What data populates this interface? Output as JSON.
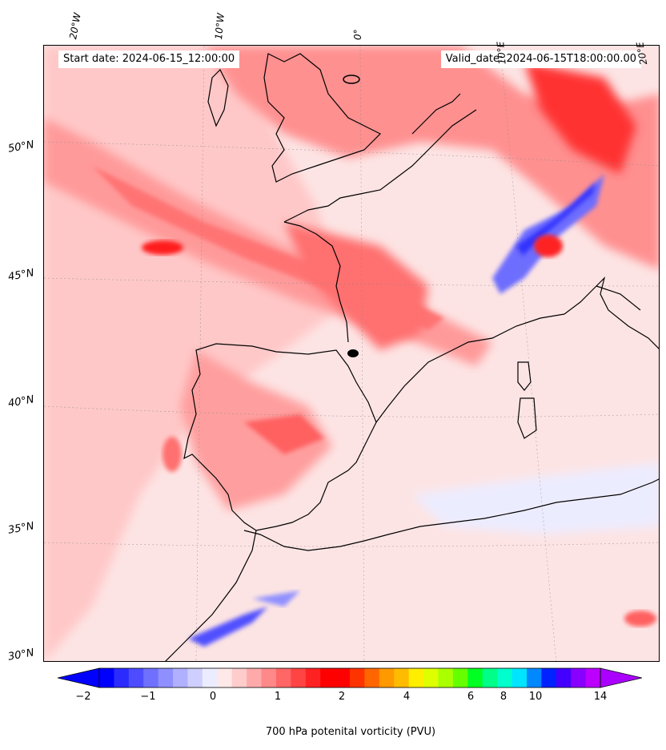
{
  "header": {
    "start_date": "Start date: 2024-06-15_12:00:00",
    "valid_date": "Valid_date: 2024-06-15T18:00:00.00"
  },
  "axes": {
    "lon_labels": [
      "20°W",
      "10°W",
      "0°",
      "10°E",
      "20°E"
    ],
    "lat_labels": [
      "50°N",
      "45°N",
      "40°N",
      "35°N",
      "30°N"
    ]
  },
  "colorbar": {
    "label": "700 hPa potenital vorticity (PVU)",
    "tick_labels": [
      "−2",
      "−1",
      "0",
      "1",
      "2",
      "4",
      "6",
      "8",
      "10",
      "14"
    ],
    "extend": "both",
    "colors": [
      "#0000ff",
      "#2b2bff",
      "#4d4dff",
      "#7070ff",
      "#8f8fff",
      "#b0b0ff",
      "#cfcfff",
      "#ececff",
      "#ffe8e8",
      "#ffcccc",
      "#ffaaaa",
      "#ff8888",
      "#ff6666",
      "#ff4444",
      "#ff2222",
      "#ff0000",
      "#ff0000",
      "#ff3300",
      "#ff6600",
      "#ff9900",
      "#ffbb00",
      "#ffee00",
      "#ddff00",
      "#aaff00",
      "#66ff00",
      "#00ff22",
      "#00ff88",
      "#00ffcc",
      "#00e5ff",
      "#0088ff",
      "#0022ff",
      "#4400ff",
      "#8800ff",
      "#bb00ff"
    ],
    "under_color": "#0000ff",
    "over_color": "#aa00ff"
  },
  "map": {
    "projection": "conic",
    "variable": "700 hPa potential vorticity",
    "background_color": "#fde8e8",
    "coastline_color": "#000000"
  }
}
